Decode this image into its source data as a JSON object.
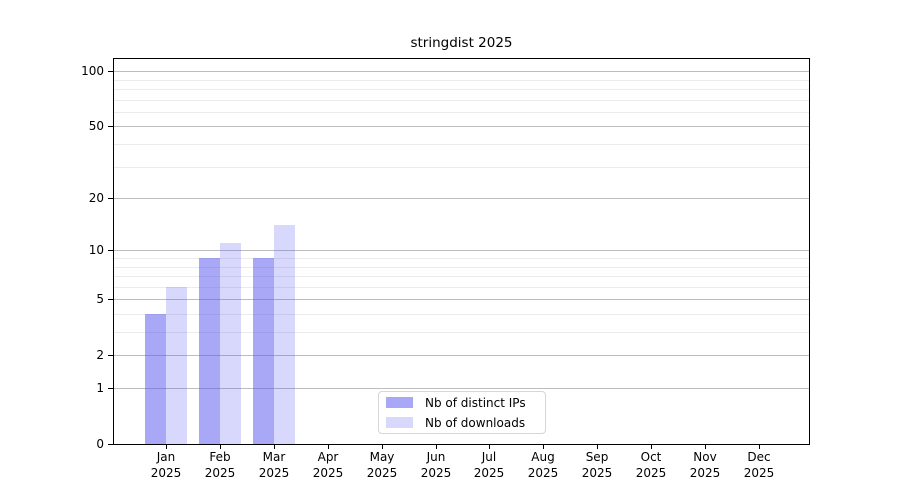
{
  "chart_data": {
    "type": "bar",
    "title": "stringdist 2025",
    "categories": [
      "Jan",
      "Feb",
      "Mar",
      "Apr",
      "May",
      "Jun",
      "Jul",
      "Aug",
      "Sep",
      "Oct",
      "Nov",
      "Dec"
    ],
    "year_label": "2025",
    "series": [
      {
        "name": "Nb of distinct IPs",
        "fill": "rgba(85,85,240,0.51)",
        "values": [
          4,
          9,
          9,
          0,
          0,
          0,
          0,
          0,
          0,
          0,
          0,
          0
        ]
      },
      {
        "name": "Nb of downloads",
        "fill": "rgba(85,85,240,0.23)",
        "values": [
          6,
          11,
          14,
          0,
          0,
          0,
          0,
          0,
          0,
          0,
          0,
          0
        ]
      }
    ],
    "y_scale": "log1p",
    "y_major_ticks": [
      0,
      1,
      2,
      5,
      10,
      20,
      50,
      100
    ],
    "y_minor_ticks": [
      3,
      4,
      6,
      7,
      8,
      9,
      30,
      40,
      60,
      70,
      80,
      90
    ],
    "ylim": [
      0,
      118
    ],
    "grid": {
      "major_color": "#bdbdbd",
      "minor_color": "#ebebeb"
    },
    "legend_position": "bottom-center"
  }
}
